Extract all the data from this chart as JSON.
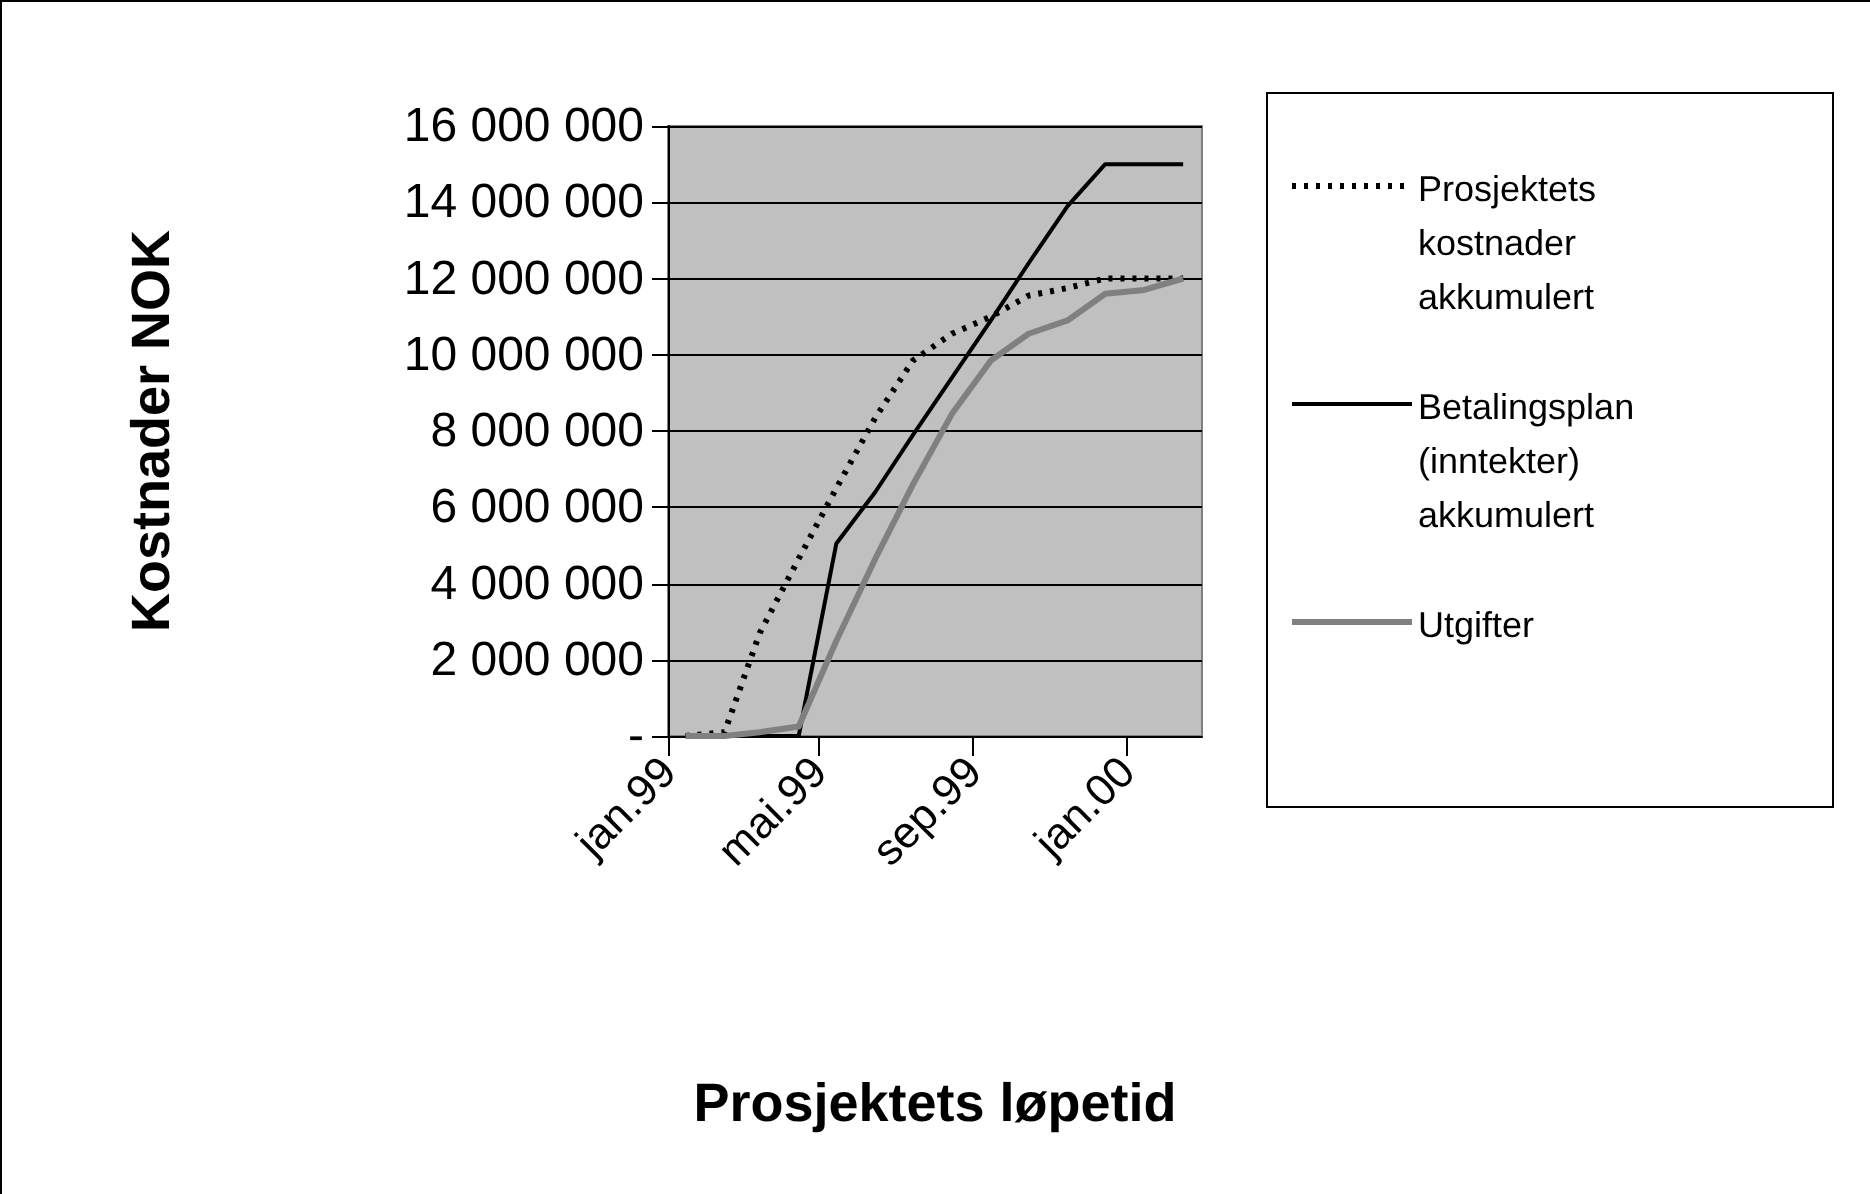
{
  "chart_data": {
    "type": "line",
    "xlabel": "Prosjektets løpetid",
    "ylabel": "Kostnader NOK",
    "x": [
      "1999-01-15",
      "1999-02-15",
      "1999-03-15",
      "1999-04-15",
      "1999-05-15",
      "1999-06-15",
      "1999-07-15",
      "1999-08-15",
      "1999-09-15",
      "1999-10-15",
      "1999-11-15",
      "1999-12-15",
      "2000-01-15",
      "2000-02-15"
    ],
    "series": [
      {
        "name": "Prosjektets kostnader akkumulert",
        "color": "#000000",
        "line_style": "dotted",
        "values": [
          0,
          100000,
          2700000,
          4650000,
          6500000,
          8350000,
          9850000,
          10550000,
          11000000,
          11550000,
          11750000,
          12000000,
          12000000,
          12000000
        ]
      },
      {
        "name": "Betalingsplan (inntekter) akkumulert",
        "color": "#000000",
        "line_style": "solid",
        "values": [
          0,
          0,
          0,
          0,
          5050000,
          6400000,
          7900000,
          9400000,
          10900000,
          12400000,
          13900000,
          15000000,
          15000000,
          15000000
        ]
      },
      {
        "name": "Utgifter",
        "color": "#808080",
        "line_style": "solid",
        "values": [
          0,
          0,
          100000,
          250000,
          2500000,
          4650000,
          6600000,
          8450000,
          9850000,
          10550000,
          10900000,
          11600000,
          11700000,
          12000000
        ]
      }
    ],
    "xlim": [
      "1999-01-01",
      "2000-03-01"
    ],
    "xticks": [
      {
        "value": "1999-01-01",
        "label": "jan.99"
      },
      {
        "value": "1999-05-01",
        "label": "mai.99"
      },
      {
        "value": "1999-09-01",
        "label": "sep.99"
      },
      {
        "value": "2000-01-01",
        "label": "jan.00"
      }
    ],
    "ylim": [
      0,
      16000000
    ],
    "yticks": [
      {
        "value": 0,
        "label": "-"
      },
      {
        "value": 2000000,
        "label": "2 000 000"
      },
      {
        "value": 4000000,
        "label": "4 000 000"
      },
      {
        "value": 6000000,
        "label": "6 000 000"
      },
      {
        "value": 8000000,
        "label": "8 000 000"
      },
      {
        "value": 10000000,
        "label": "10 000 000"
      },
      {
        "value": 12000000,
        "label": "12 000 000"
      },
      {
        "value": 14000000,
        "label": "14 000 000"
      },
      {
        "value": 16000000,
        "label": "16 000 000"
      }
    ],
    "grid": "y",
    "legend": "right",
    "marker": "none"
  }
}
